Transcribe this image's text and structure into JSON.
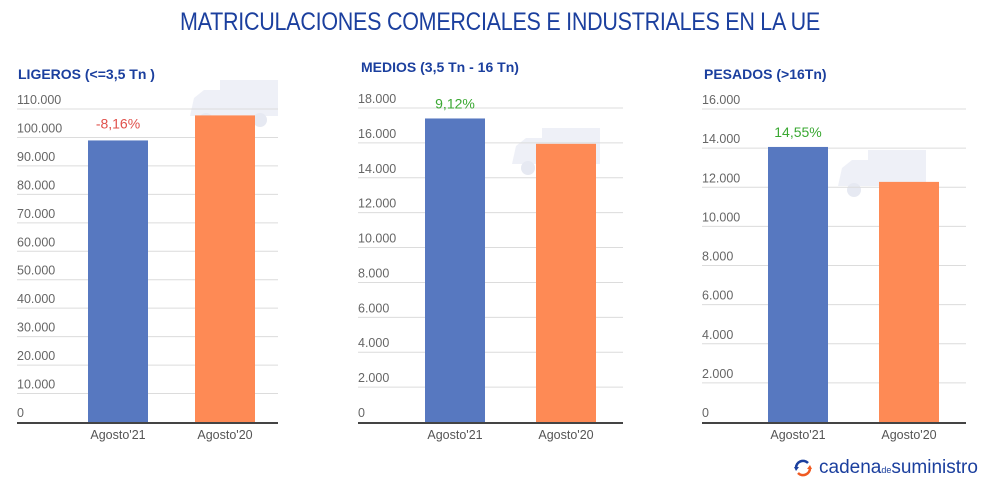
{
  "title": "MATRICULACIONES COMERCIALES E INDUSTRIALES EN LA UE",
  "colors": {
    "title": "#1b3f9e",
    "agosto21": "#5778c0",
    "agosto20": "#fe8a55",
    "negative": "#e0504a",
    "positive": "#3aa832"
  },
  "chart_data": [
    {
      "type": "bar",
      "title": "LIGEROS (<=3,5 Tn )",
      "categories": [
        "Agosto'21",
        "Agosto'20"
      ],
      "values": [
        98950,
        107750
      ],
      "ylim": [
        0,
        110000
      ],
      "yticks": [
        "0",
        "10.000",
        "20.000",
        "30.000",
        "40.000",
        "50.000",
        "60.000",
        "70.000",
        "80.000",
        "90.000",
        "100.000",
        "110.000"
      ],
      "ytick_values": [
        0,
        10000,
        20000,
        30000,
        40000,
        50000,
        60000,
        70000,
        80000,
        90000,
        100000,
        110000
      ],
      "annotation": "-8,16%",
      "annotation_color": "negative",
      "grid": true
    },
    {
      "type": "bar",
      "title": "MEDIOS (3,5 Tn - 16 Tn)",
      "categories": [
        "Agosto'21",
        "Agosto'20"
      ],
      "values": [
        17400,
        15946
      ],
      "ylim": [
        0,
        18000
      ],
      "yticks": [
        "0",
        "2.000",
        "4.000",
        "6.000",
        "8.000",
        "10.000",
        "12.000",
        "14.000",
        "16.000",
        "18.000"
      ],
      "ytick_values": [
        0,
        2000,
        4000,
        6000,
        8000,
        10000,
        12000,
        14000,
        16000,
        18000
      ],
      "annotation": "9,12%",
      "annotation_color": "positive",
      "grid": true
    },
    {
      "type": "bar",
      "title": "PESADOS (>16Tn)",
      "categories": [
        "Agosto'21",
        "Agosto'20"
      ],
      "values": [
        14060,
        12274
      ],
      "ylim": [
        0,
        16000
      ],
      "yticks": [
        "0",
        "2.000",
        "4.000",
        "6.000",
        "8.000",
        "10.000",
        "12.000",
        "14.000",
        "16.000"
      ],
      "ytick_values": [
        0,
        2000,
        4000,
        6000,
        8000,
        10000,
        12000,
        14000,
        16000
      ],
      "annotation": "14,55%",
      "annotation_color": "positive",
      "grid": true
    }
  ],
  "logo": {
    "part1": "cadena",
    "part2": "de",
    "part3": "suministro",
    "icon": "refresh-arrows-icon"
  }
}
